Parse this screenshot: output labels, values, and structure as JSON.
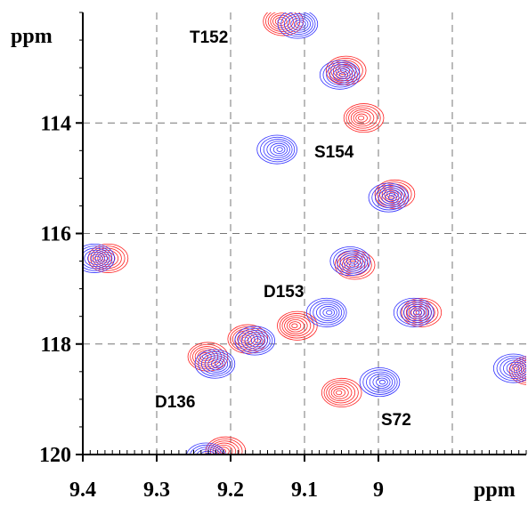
{
  "chart_data": {
    "type": "contour",
    "x_label": "ppm",
    "y_label": "ppm",
    "xlim": [
      9.4,
      8.8
    ],
    "ylim": [
      112,
      120
    ],
    "xticks": [
      9.4,
      9.3,
      9.2,
      9.1,
      9.0
    ],
    "xgrid": [
      9.3,
      9.2,
      9.1,
      9.0,
      8.9
    ],
    "yticks": [
      114,
      116,
      118,
      120
    ],
    "ygrid": [
      114,
      116,
      118
    ],
    "series": [
      {
        "color": "#ff2020",
        "x": [
          9.133,
          9.048,
          9.024,
          8.982,
          9.036,
          8.946,
          9.114,
          9.181,
          9.235,
          9.054,
          9.37,
          9.211,
          8.8
        ],
        "values": [
          112.16,
          113.05,
          113.91,
          115.29,
          116.57,
          117.43,
          117.67,
          117.91,
          118.23,
          118.88,
          116.45,
          119.94,
          118.48
        ]
      },
      {
        "color": "#3030ff",
        "x": [
          9.105,
          9.048,
          9.133,
          8.982,
          9.034,
          9.066,
          8.948,
          9.163,
          9.217,
          8.994,
          9.38,
          9.229,
          8.813
        ],
        "values": [
          112.21,
          113.13,
          114.48,
          115.35,
          116.5,
          117.43,
          117.43,
          117.94,
          118.36,
          118.69,
          116.45,
          120.05,
          118.44
        ]
      }
    ],
    "annotations": [
      "T152",
      "S154",
      "D153",
      "D136",
      "S72"
    ]
  }
}
